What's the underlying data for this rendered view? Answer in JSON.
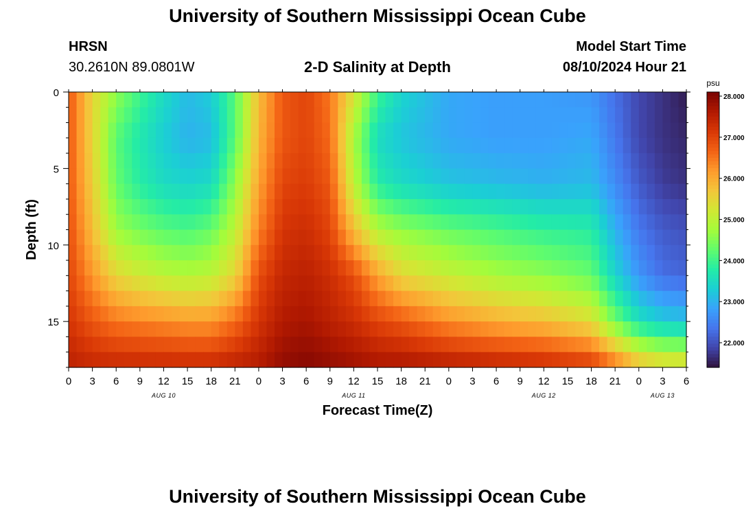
{
  "header": {
    "title": "University of Southern Mississippi Ocean Cube",
    "station": "HRSN",
    "coords": "30.2610N  89.0801W",
    "plot_title": "2-D Salinity at Depth",
    "model_start_label": "Model Start Time",
    "model_start_value": "08/10/2024 Hour 21"
  },
  "footer": {
    "title": "University of Southern Mississippi Ocean Cube"
  },
  "chart_data": {
    "type": "heatmap",
    "title": "2-D Salinity at Depth",
    "xlabel": "Forecast Time(Z)",
    "ylabel": "Depth (ft)",
    "colorbar_label": "psu",
    "x_range_hours": [
      0,
      78
    ],
    "y_range_ft": [
      0,
      18
    ],
    "y_ticks": [
      "0",
      "5",
      "10",
      "15"
    ],
    "y_tick_values": [
      0,
      5,
      10,
      15
    ],
    "x_tick_labels": [
      "0",
      "3",
      "6",
      "9",
      "12",
      "15",
      "18",
      "21",
      "0",
      "3",
      "6",
      "9",
      "12",
      "15",
      "18",
      "21",
      "0",
      "3",
      "6",
      "9",
      "12",
      "15",
      "18",
      "21",
      "0",
      "3",
      "6"
    ],
    "date_labels": [
      {
        "label": "AUG 10",
        "hour": 12
      },
      {
        "label": "AUG 11",
        "hour": 36
      },
      {
        "label": "AUG 12",
        "hour": 60
      },
      {
        "label": "AUG 13",
        "hour": 75
      }
    ],
    "colorbar_range": [
      21.4,
      28.1
    ],
    "colorbar_ticks": [
      "22.000",
      "23.000",
      "24.000",
      "25.000",
      "26.000",
      "27.000",
      "28.000"
    ],
    "colorbar_tick_values": [
      22,
      23,
      24,
      25,
      26,
      27,
      28
    ],
    "colormap": [
      "#30123b",
      "#4145ab",
      "#4675ed",
      "#39a2fc",
      "#1bcfd4",
      "#24eca6",
      "#61fc6c",
      "#a4fc3b",
      "#d1e834",
      "#f3c63a",
      "#fe9b2d",
      "#f36315",
      "#d93806",
      "#b11901",
      "#7a0403"
    ],
    "salinity_profile_psu": {
      "description": "Approximate salinity (psu) at selected hours for depths 0, 3, 6, 9, 12, 15, 18 ft",
      "depths_ft": [
        0,
        3,
        6,
        9,
        12,
        15,
        18
      ],
      "columns": [
        {
          "hour": 0,
          "values": [
            26.8,
            26.8,
            26.8,
            26.9,
            27.0,
            27.2,
            27.5
          ]
        },
        {
          "hour": 3,
          "values": [
            25.5,
            25.5,
            25.6,
            25.8,
            26.2,
            26.8,
            27.4
          ]
        },
        {
          "hour": 6,
          "values": [
            24.6,
            24.2,
            24.3,
            24.7,
            25.5,
            26.5,
            27.4
          ]
        },
        {
          "hour": 9,
          "values": [
            24.0,
            23.7,
            23.8,
            24.4,
            25.2,
            26.4,
            27.4
          ]
        },
        {
          "hour": 12,
          "values": [
            23.5,
            23.3,
            23.5,
            24.2,
            25.0,
            26.3,
            27.4
          ]
        },
        {
          "hour": 15,
          "values": [
            23.1,
            23.0,
            23.4,
            24.1,
            24.9,
            26.2,
            27.4
          ]
        },
        {
          "hour": 18,
          "values": [
            23.3,
            23.1,
            23.5,
            24.3,
            25.0,
            26.2,
            27.4
          ]
        },
        {
          "hour": 21,
          "values": [
            24.2,
            24.2,
            24.6,
            25.0,
            25.5,
            26.6,
            27.5
          ]
        },
        {
          "hour": 24,
          "values": [
            25.8,
            25.9,
            26.1,
            26.4,
            26.9,
            27.2,
            27.6
          ]
        },
        {
          "hour": 27,
          "values": [
            26.8,
            26.8,
            27.0,
            27.2,
            27.4,
            27.6,
            27.9
          ]
        },
        {
          "hour": 30,
          "values": [
            27.0,
            27.0,
            27.1,
            27.3,
            27.5,
            27.7,
            28.0
          ]
        },
        {
          "hour": 33,
          "values": [
            26.5,
            26.6,
            26.8,
            27.0,
            27.3,
            27.5,
            27.9
          ]
        },
        {
          "hour": 36,
          "values": [
            25.3,
            24.8,
            25.0,
            25.8,
            26.9,
            27.3,
            27.8
          ]
        },
        {
          "hour": 39,
          "values": [
            24.0,
            23.5,
            23.8,
            24.9,
            26.1,
            27.0,
            27.7
          ]
        },
        {
          "hour": 42,
          "values": [
            23.4,
            23.2,
            23.5,
            24.6,
            25.5,
            26.8,
            27.7
          ]
        },
        {
          "hour": 48,
          "values": [
            22.9,
            22.9,
            23.2,
            24.3,
            25.1,
            26.3,
            27.6
          ]
        },
        {
          "hour": 54,
          "values": [
            22.8,
            22.8,
            23.1,
            24.1,
            24.8,
            26.0,
            27.5
          ]
        },
        {
          "hour": 60,
          "values": [
            22.8,
            22.8,
            23.0,
            23.9,
            24.6,
            25.8,
            27.4
          ]
        },
        {
          "hour": 66,
          "values": [
            22.7,
            22.9,
            23.1,
            23.8,
            24.3,
            25.4,
            27.2
          ]
        },
        {
          "hour": 69,
          "values": [
            22.3,
            22.4,
            22.6,
            23.0,
            23.4,
            24.4,
            26.6
          ]
        },
        {
          "hour": 72,
          "values": [
            21.9,
            21.9,
            22.1,
            22.4,
            22.7,
            23.6,
            25.9
          ]
        },
        {
          "hour": 75,
          "values": [
            21.7,
            21.7,
            21.8,
            22.1,
            22.3,
            23.3,
            25.6
          ]
        },
        {
          "hour": 78,
          "values": [
            21.5,
            21.6,
            21.7,
            22.0,
            22.2,
            23.2,
            25.6
          ]
        }
      ]
    }
  }
}
